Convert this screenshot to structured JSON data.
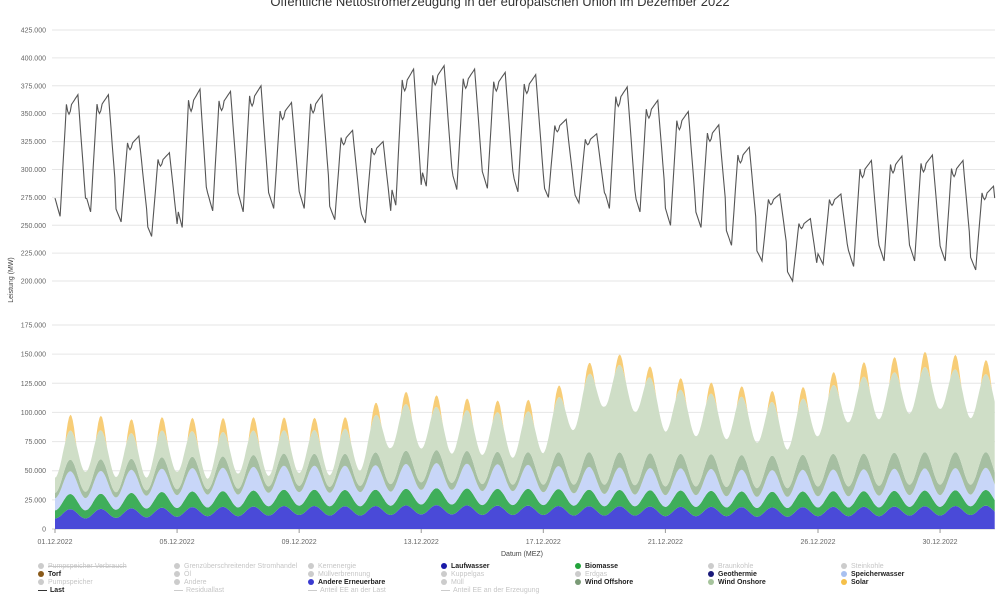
{
  "chart_data": {
    "type": "area",
    "title": "Öffentliche Nettostromerzeugung in der europäischen Union im Dezember 2022",
    "xlabel": "Datum (MEZ)",
    "ylabel": "Leistung (MW)",
    "x_ticks": [
      "01.12.2022",
      "05.12.2022",
      "09.12.2022",
      "13.12.2022",
      "17.12.2022",
      "21.12.2022",
      "26.12.2022",
      "30.12.2022"
    ],
    "x_tick_days": [
      0,
      4,
      8,
      12,
      16,
      20,
      25,
      29
    ],
    "x_range_days": [
      0,
      30.8
    ],
    "upper_panel": {
      "ylim": [
        187500,
        425000
      ],
      "y_ticks": [
        "200.000",
        "225.000",
        "250.000",
        "275.000",
        "300.000",
        "325.000",
        "350.000",
        "375.000",
        "400.000",
        "425.000"
      ],
      "y_tick_values": [
        200000,
        225000,
        250000,
        275000,
        300000,
        325000,
        350000,
        375000,
        400000,
        425000
      ],
      "series": [
        {
          "name": "Last",
          "color": "#555555",
          "daily_peak": [
            367000,
            367000,
            330000,
            315000,
            372000,
            370000,
            375000,
            360000,
            367000,
            335000,
            325000,
            390000,
            393000,
            390000,
            387000,
            385000,
            345000,
            332000,
            374000,
            362000,
            352000,
            340000,
            320000,
            278000,
            256000,
            278000,
            308000,
            312000,
            313000,
            308000,
            285000
          ],
          "night_min": [
            258000,
            262000,
            253000,
            240000,
            248000,
            263000,
            262000,
            265000,
            265000,
            255000,
            252000,
            268000,
            285000,
            282000,
            283000,
            280000,
            275000,
            270000,
            265000,
            262000,
            250000,
            248000,
            232000,
            218000,
            200000,
            215000,
            213000,
            218000,
            218000,
            218000,
            210000
          ]
        }
      ]
    },
    "lower_panel": {
      "ylim": [
        0,
        175000
      ],
      "y_ticks": [
        "0",
        "25.000",
        "50.000",
        "75.000",
        "100.000",
        "125.000",
        "150.000",
        "175.000"
      ],
      "y_tick_values": [
        0,
        25000,
        50000,
        75000,
        100000,
        125000,
        150000,
        175000
      ],
      "series": [
        {
          "name": "Andere Erneuerbare",
          "color": "#4a4ad8",
          "base": [
            13000,
            13000,
            13500,
            14000,
            14500,
            15000,
            15000,
            15500,
            16000,
            15500,
            15500,
            16000,
            16500,
            16500,
            16000,
            16000,
            16000,
            15500,
            15500,
            15500,
            15000,
            15000,
            15000,
            14500,
            14500,
            15000,
            15000,
            15000,
            15500,
            15500,
            16000
          ],
          "amp": 4000
        },
        {
          "name": "Biomasse / Laufwasser",
          "color": "#3fae5a",
          "base": [
            10000,
            10000,
            10000,
            10500,
            10500,
            10500,
            10500,
            11000,
            11000,
            11000,
            11000,
            11000,
            11500,
            11500,
            11500,
            11500,
            11500,
            11500,
            11000,
            11000,
            11000,
            11000,
            10500,
            10500,
            10500,
            10500,
            10500,
            10500,
            10500,
            10500,
            10500
          ],
          "amp": 3000
        },
        {
          "name": "Speicherwasser",
          "color": "#c8d6f8",
          "base": [
            15000,
            15000,
            15000,
            15500,
            15500,
            15500,
            15500,
            16000,
            16000,
            16000,
            16500,
            16500,
            17000,
            17000,
            16500,
            16500,
            15500,
            15000,
            15000,
            14500,
            14500,
            14500,
            14000,
            14000,
            14000,
            14000,
            14000,
            14500,
            14500,
            14500,
            14500
          ],
          "amp": 4500
        },
        {
          "name": "Wind Offshore",
          "color": "#a6bfa2",
          "base": [
            7000,
            8000,
            7000,
            7000,
            7500,
            7000,
            7500,
            8000,
            8000,
            7500,
            8000,
            9000,
            9000,
            8500,
            8500,
            8000,
            9000,
            10000,
            10500,
            10500,
            10000,
            10000,
            10500,
            10000,
            10000,
            11000,
            11000,
            11000,
            11500,
            11500,
            11000
          ],
          "amp": 2500
        },
        {
          "name": "Wind Onshore",
          "color": "#cfdec7",
          "base": [
            18000,
            22000,
            18000,
            16000,
            20000,
            14000,
            18000,
            14000,
            16000,
            15000,
            18000,
            36000,
            34000,
            30000,
            30000,
            28000,
            32000,
            52000,
            72000,
            68000,
            52000,
            48000,
            46000,
            44000,
            38000,
            48000,
            60000,
            62000,
            66000,
            70000,
            62000
          ],
          "amp": 5000
        },
        {
          "name": "Solar",
          "color": "#f7cd77",
          "peak": [
            14000,
            13000,
            12000,
            12000,
            11000,
            12000,
            12000,
            11000,
            11000,
            10000,
            10000,
            11000,
            10000,
            10000,
            10000,
            10000,
            10000,
            10000,
            9000,
            9000,
            10000,
            10000,
            9000,
            9000,
            10000,
            10000,
            12000,
            13000,
            13000,
            13000,
            12000
          ]
        }
      ]
    },
    "legend": [
      {
        "label": "Pumpspeicher Verbrauch",
        "color": "#cccccc",
        "active": false,
        "strike": true
      },
      {
        "label": "Grenzüberschreitender Stromhandel",
        "color": "#cccccc",
        "active": false
      },
      {
        "label": "Kernenergie",
        "color": "#cccccc",
        "active": false
      },
      {
        "label": "Laufwasser",
        "color": "#1a1aa8",
        "active": true
      },
      {
        "label": "Biomasse",
        "color": "#22a33a",
        "active": true
      },
      {
        "label": "Braunkohle",
        "color": "#cccccc",
        "active": false
      },
      {
        "label": "Steinkohle",
        "color": "#cccccc",
        "active": false
      },
      {
        "label": "Torf",
        "color": "#8a5a1a",
        "active": true
      },
      {
        "label": "Öl",
        "color": "#cccccc",
        "active": false
      },
      {
        "label": "Müllverbrennung",
        "color": "#cccccc",
        "active": false
      },
      {
        "label": "Kuppelgas",
        "color": "#cccccc",
        "active": false
      },
      {
        "label": "Erdgas",
        "color": "#cccccc",
        "active": false
      },
      {
        "label": "Geothermie",
        "color": "#1a1a7a",
        "active": true
      },
      {
        "label": "Speicherwasser",
        "color": "#a8c0f0",
        "active": true
      },
      {
        "label": "Pumpspeicher",
        "color": "#cccccc",
        "active": false
      },
      {
        "label": "Andere",
        "color": "#cccccc",
        "active": false
      },
      {
        "label": "Andere Erneuerbare",
        "color": "#3a3ad0",
        "active": true
      },
      {
        "label": "Müll",
        "color": "#cccccc",
        "active": false
      },
      {
        "label": "Wind Offshore",
        "color": "#7a9a76",
        "active": true
      },
      {
        "label": "Wind Onshore",
        "color": "#a6c49c",
        "active": true
      },
      {
        "label": "Solar",
        "color": "#f5c04a",
        "active": true
      },
      {
        "label": "Last",
        "color": "#333333",
        "active": true,
        "line": true
      },
      {
        "label": "Residuallast",
        "color": "#cccccc",
        "active": false,
        "line": true
      },
      {
        "label": "Anteil EE an der Last",
        "color": "#cccccc",
        "active": false,
        "line": true
      },
      {
        "label": "Anteil EE an der Erzeugung",
        "color": "#cccccc",
        "active": false,
        "line": true
      }
    ]
  }
}
